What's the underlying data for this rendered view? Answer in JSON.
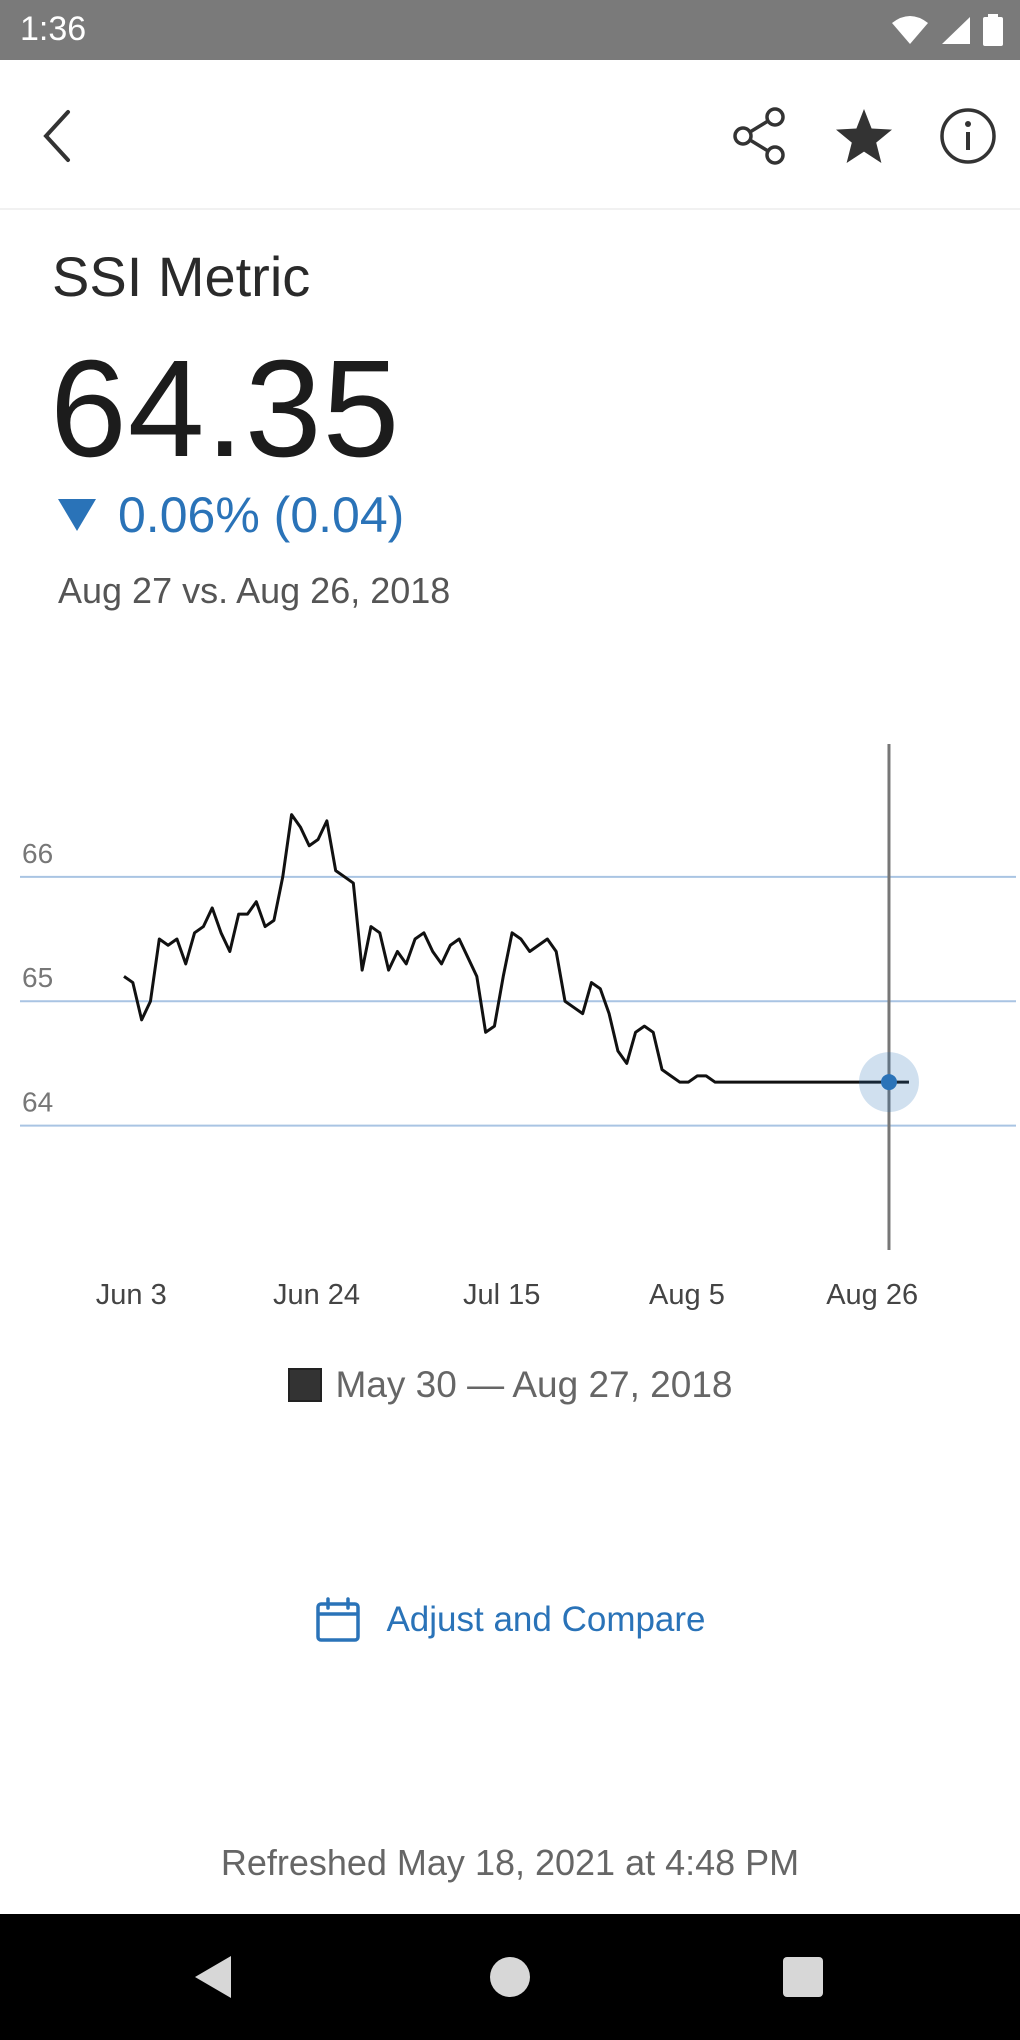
{
  "status_bar": {
    "time": "1:36",
    "icons": [
      "wifi-icon",
      "signal-icon",
      "battery-icon"
    ]
  },
  "toolbar": {
    "icons": [
      "back-arrow-icon",
      "share-icon",
      "star-icon",
      "info-icon"
    ]
  },
  "metric": {
    "name": "SSI Metric",
    "value": "64.35",
    "change": "0.06% (0.04)",
    "direction": "down",
    "comparison": "Aug 27 vs. Aug 26, 2018"
  },
  "colors": {
    "accent": "#2a73b8",
    "line": "#111111",
    "gridline": "#a9c4e3"
  },
  "chart_data": {
    "type": "line",
    "y_ticks": [
      "66",
      "65",
      "64"
    ],
    "ylim": [
      63.0,
      67.1
    ],
    "x_ticks": [
      {
        "label": "Jun 3",
        "day": 4
      },
      {
        "label": "Jun 24",
        "day": 25
      },
      {
        "label": "Jul 15",
        "day": 46
      },
      {
        "label": "Aug 5",
        "day": 67
      },
      {
        "label": "Aug 26",
        "day": 88
      }
    ],
    "legend": "May 30 — Aug 27, 2018",
    "highlight": {
      "day": 89,
      "value": 64.35
    },
    "series": [
      {
        "x": [
          0,
          1,
          2,
          3,
          4,
          5,
          6,
          7,
          8,
          9,
          10,
          11,
          12,
          13,
          14,
          15,
          16,
          17,
          18,
          19,
          20,
          21,
          22,
          23,
          24,
          25,
          26,
          27,
          28,
          29,
          30,
          31,
          32,
          33,
          34,
          35,
          36,
          37,
          38,
          39,
          40,
          41,
          42,
          43,
          44,
          45,
          46,
          47,
          48,
          49,
          50,
          51,
          52,
          53,
          54,
          55,
          56,
          57,
          58,
          59,
          60,
          61,
          62,
          63,
          64,
          65,
          66,
          67,
          68,
          69,
          70,
          71,
          72,
          73,
          74,
          75,
          76,
          77,
          78,
          79,
          80,
          81,
          82,
          83,
          84,
          85,
          86,
          87,
          88,
          89
        ],
        "y": [
          65.2,
          65.15,
          64.85,
          65.0,
          65.5,
          65.45,
          65.5,
          65.3,
          65.55,
          65.6,
          65.75,
          65.55,
          65.4,
          65.7,
          65.7,
          65.8,
          65.6,
          65.65,
          66.0,
          66.5,
          66.4,
          66.25,
          66.3,
          66.45,
          66.05,
          66.0,
          65.95,
          65.25,
          65.6,
          65.55,
          65.25,
          65.4,
          65.3,
          65.5,
          65.55,
          65.4,
          65.3,
          65.45,
          65.5,
          65.35,
          65.2,
          64.75,
          64.8,
          65.2,
          65.55,
          65.5,
          65.4,
          65.45,
          65.5,
          65.4,
          65.0,
          64.95,
          64.9,
          65.15,
          65.1,
          64.9,
          64.6,
          64.5,
          64.75,
          64.8,
          64.75,
          64.45,
          64.4,
          64.35,
          64.35,
          64.4,
          64.4,
          64.35,
          64.35,
          64.35,
          64.35,
          64.35,
          64.35,
          64.35,
          64.35,
          64.35,
          64.35,
          64.35,
          64.35,
          64.35,
          64.35,
          64.35,
          64.35,
          64.35,
          64.35,
          64.35,
          64.35,
          64.35,
          64.35,
          64.35
        ]
      }
    ]
  },
  "adjust_button": {
    "label": "Adjust and Compare",
    "icon": "calendar-icon"
  },
  "footer": {
    "refreshed": "Refreshed May 18, 2021 at 4:48 PM"
  },
  "nav": {
    "icons": [
      "nav-back-icon",
      "nav-home-icon",
      "nav-recents-icon"
    ]
  }
}
